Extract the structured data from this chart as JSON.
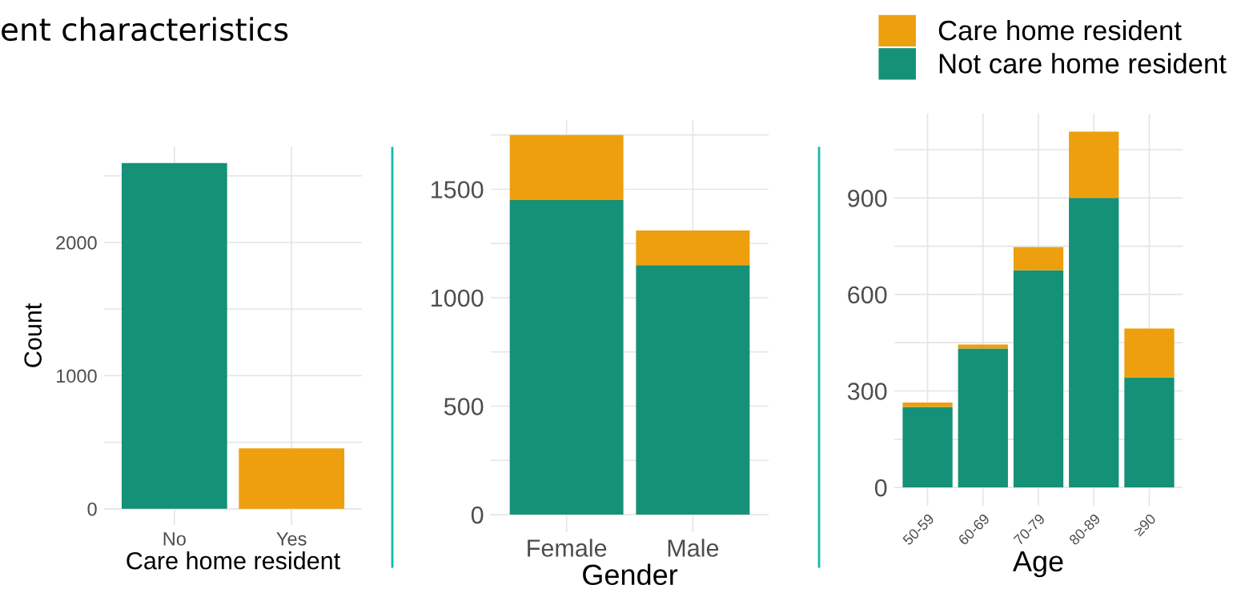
{
  "chart_data": [
    {
      "type": "bar",
      "title": "ent characteristics",
      "xlabel": "Care home resident",
      "ylabel": "Count",
      "categories": [
        "No",
        "Yes"
      ],
      "values": [
        2596,
        455
      ],
      "colors": [
        "#159177",
        "#ed9f0e"
      ],
      "ylim": [
        -121,
        2721
      ],
      "yticks": [
        0,
        {
          "value": 500,
          "label": null
        },
        1000,
        {
          "value": 1500,
          "label": null
        },
        2000,
        {
          "value": 2500,
          "label": null
        }
      ],
      "grid": true
    },
    {
      "type": "bar",
      "stacked": true,
      "xlabel": "Gender",
      "categories": [
        "Female",
        "Male"
      ],
      "series": [
        {
          "color": "#159177",
          "values": [
            1450,
            1150
          ]
        },
        {
          "color": "#ed9f0e",
          "values": [
            300,
            160
          ]
        }
      ],
      "ylim": [
        -81,
        1819
      ],
      "yticks": [
        0,
        {
          "value": 250,
          "label": null
        },
        500,
        {
          "value": 750,
          "label": null
        },
        1000,
        {
          "value": 1250,
          "label": null
        },
        1500,
        {
          "value": 1750,
          "label": null
        }
      ],
      "grid": true
    },
    {
      "type": "bar",
      "stacked": true,
      "xlabel": "Age",
      "categories": [
        "50-59",
        "60-69",
        "70-79",
        "80-89",
        "≥90"
      ],
      "series": [
        {
          "name": "Not care home resident",
          "color": "#159177",
          "values": [
            250,
            432,
            675,
            900,
            342
          ]
        },
        {
          "name": "Care home resident",
          "color": "#ed9f0e",
          "values": [
            14,
            12,
            72,
            206,
            152
          ]
        }
      ],
      "ylim": [
        -57,
        1162
      ],
      "yticks": [
        0,
        {
          "value": 150,
          "label": null
        },
        300,
        {
          "value": 450,
          "label": null
        },
        600,
        {
          "value": 750,
          "label": null
        },
        900,
        {
          "value": 1050,
          "label": null
        }
      ],
      "grid": true,
      "legend": "top"
    }
  ]
}
